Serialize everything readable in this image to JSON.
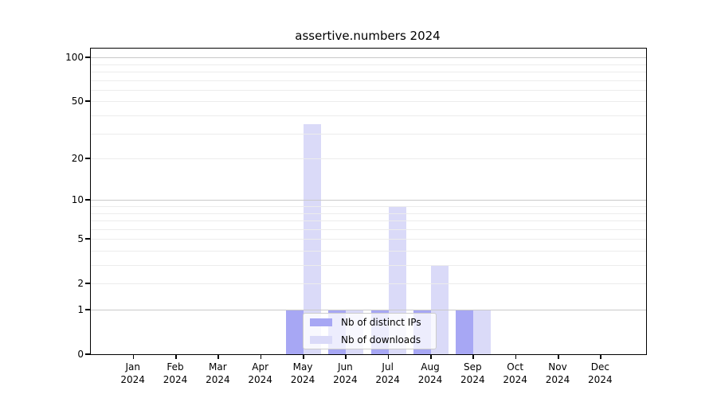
{
  "chart_data": {
    "type": "bar",
    "title": "assertive.numbers 2024",
    "categories": [
      "Jan",
      "Feb",
      "Mar",
      "Apr",
      "May",
      "Jun",
      "Jul",
      "Aug",
      "Sep",
      "Oct",
      "Nov",
      "Dec"
    ],
    "year_label": "2024",
    "series": [
      {
        "name": "Nb of distinct IPs",
        "color": "#a7a7f4",
        "values": [
          0,
          0,
          0,
          0,
          1,
          1,
          1,
          1,
          1,
          0,
          0,
          0
        ]
      },
      {
        "name": "Nb of downloads",
        "color": "#dadaf8",
        "values": [
          0,
          0,
          0,
          0,
          35,
          1,
          9,
          3,
          1,
          0,
          0,
          0
        ]
      }
    ],
    "yscale": "log1p",
    "ylim": [
      0,
      115
    ],
    "yticks": [
      0,
      1,
      2,
      5,
      10,
      20,
      50,
      100
    ],
    "grid_major": [
      1,
      10,
      100
    ],
    "grid_minor": [
      2,
      3,
      4,
      5,
      6,
      7,
      8,
      9,
      20,
      30,
      40,
      50,
      60,
      70,
      80,
      90
    ],
    "grid": true,
    "legend_position": "lower center"
  },
  "colors": {
    "grid_major": "#c9c9c9",
    "grid_minor": "#ececec",
    "spine": "#000000",
    "legend_border": "#cccccc",
    "text": "#000000"
  }
}
